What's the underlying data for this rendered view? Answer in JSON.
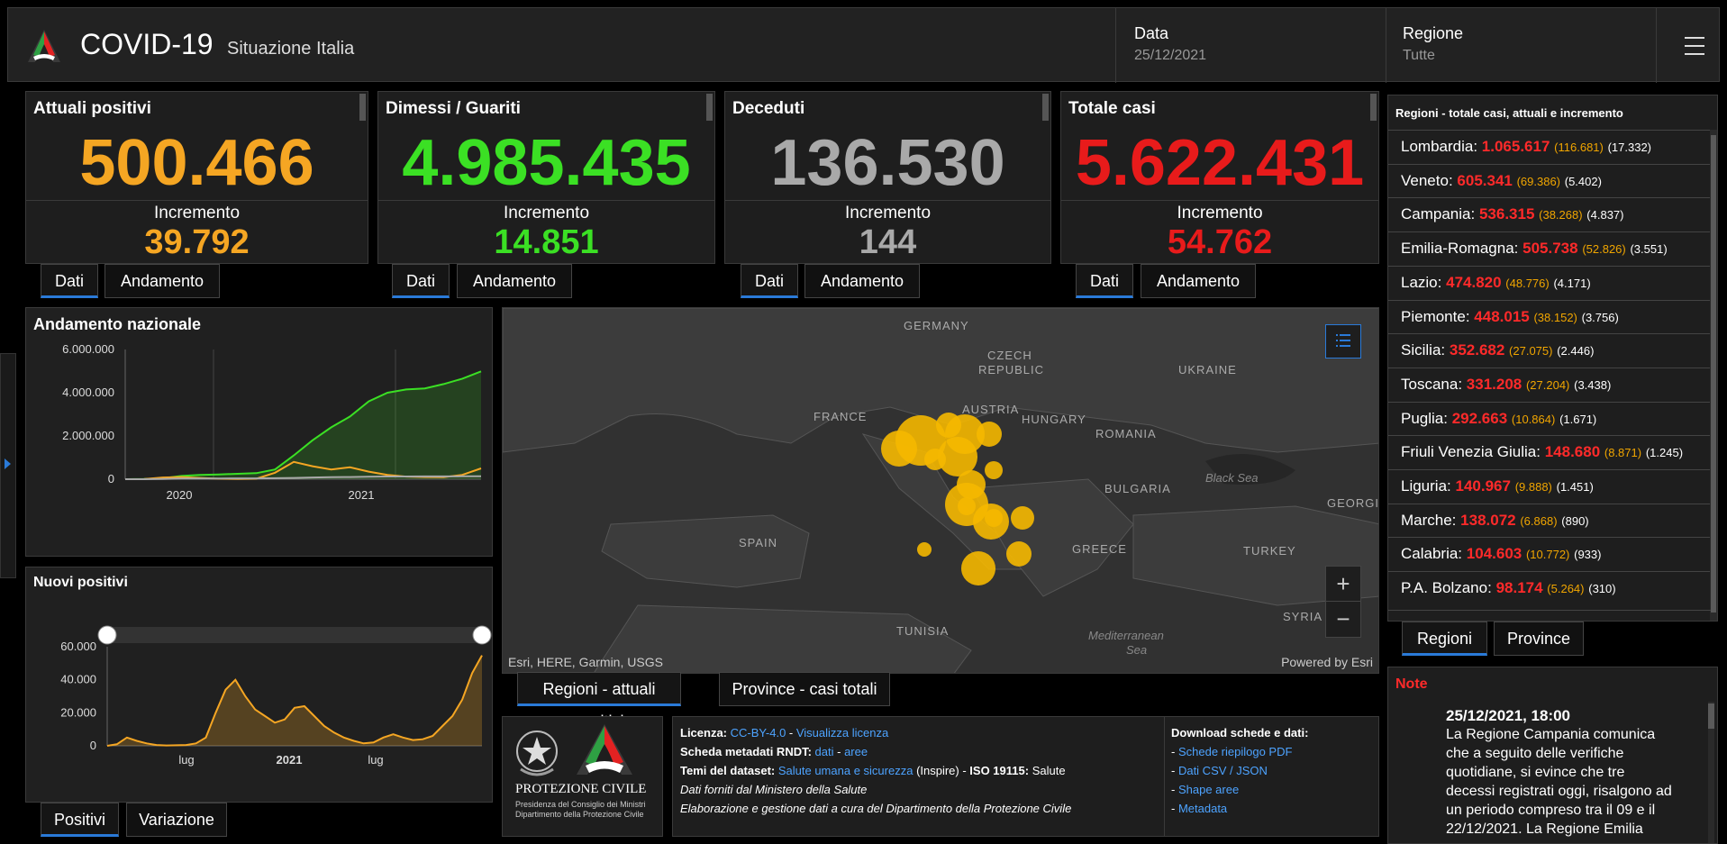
{
  "header": {
    "title": "COVID-19",
    "subtitle": "Situazione Italia",
    "date_label": "Data",
    "date_value": "25/12/2021",
    "region_label": "Regione",
    "region_value": "Tutte"
  },
  "cards": [
    {
      "title": "Attuali positivi",
      "value": "500.466",
      "inc_label": "Incremento",
      "inc_value": "39.792",
      "color": "#f5a623"
    },
    {
      "title": "Dimessi / Guariti",
      "value": "4.985.435",
      "inc_label": "Incremento",
      "inc_value": "14.851",
      "color": "#3be024"
    },
    {
      "title": "Deceduti",
      "value": "136.530",
      "inc_label": "Incremento",
      "inc_value": "144",
      "color": "#a9a9a9"
    },
    {
      "title": "Totale casi",
      "value": "5.622.431",
      "inc_label": "Incremento",
      "inc_value": "54.762",
      "color": "#e81b1b"
    }
  ],
  "card_tabs": {
    "dati": "Dati",
    "andamento": "Andamento"
  },
  "chart_tabs": {
    "positivi": "Positivi",
    "variazione": "Variazione"
  },
  "map_tabs": {
    "attuali": "Regioni - attuali positivi",
    "province": "Province - casi totali"
  },
  "region_tabs": {
    "regioni": "Regioni",
    "province": "Province"
  },
  "map": {
    "countries": [
      "GERMANY",
      "CZECH",
      "REPUBLIC",
      "UKRAINE",
      "FRANCE",
      "AUSTRIA",
      "HUNGARY",
      "ROMANIA",
      "BULGARIA",
      "SPAIN",
      "GREECE",
      "TURKEY",
      "TUNISIA",
      "SYRIA",
      "GEORGI"
    ],
    "seas": [
      "Black Sea",
      "Mediterranean",
      "Sea"
    ],
    "attribution": "Esri, HERE, Garmin, USGS",
    "powered": "Powered by Esri",
    "zoom_in": "+",
    "zoom_out": "−"
  },
  "regions_panel": {
    "title": "Regioni - totale casi, attuali e incremento",
    "rows": [
      {
        "name": "Lombardia:",
        "total": "1.065.617",
        "att": "(116.681)",
        "inc": "(17.332)"
      },
      {
        "name": "Veneto:",
        "total": "605.341",
        "att": "(69.386)",
        "inc": "(5.402)"
      },
      {
        "name": "Campania:",
        "total": "536.315",
        "att": "(38.268)",
        "inc": "(4.837)"
      },
      {
        "name": "Emilia-Romagna:",
        "total": "505.738",
        "att": "(52.826)",
        "inc": "(3.551)"
      },
      {
        "name": "Lazio:",
        "total": "474.820",
        "att": "(48.776)",
        "inc": "(4.171)"
      },
      {
        "name": "Piemonte:",
        "total": "448.015",
        "att": "(38.152)",
        "inc": "(3.756)"
      },
      {
        "name": "Sicilia:",
        "total": "352.682",
        "att": "(27.075)",
        "inc": "(2.446)"
      },
      {
        "name": "Toscana:",
        "total": "331.208",
        "att": "(27.204)",
        "inc": "(3.438)"
      },
      {
        "name": "Puglia:",
        "total": "292.663",
        "att": "(10.864)",
        "inc": "(1.671)"
      },
      {
        "name": "Friuli Venezia Giulia:",
        "total": "148.680",
        "att": "(8.871)",
        "inc": "(1.245)"
      },
      {
        "name": "Liguria:",
        "total": "140.967",
        "att": "(9.888)",
        "inc": "(1.451)"
      },
      {
        "name": "Marche:",
        "total": "138.072",
        "att": "(6.868)",
        "inc": "(890)"
      },
      {
        "name": "Calabria:",
        "total": "104.603",
        "att": "(10.772)",
        "inc": "(933)"
      },
      {
        "name": "P.A. Bolzano:",
        "total": "98.174",
        "att": "(5.264)",
        "inc": "(310)"
      }
    ]
  },
  "notes": {
    "title": "Note",
    "date": "25/12/2021, 18:00",
    "lines": [
      "La Regione Campania comunica",
      "che a seguito delle verifiche",
      "quotidiane, si evince che tre",
      "decessi registrati oggi, risalgono ad",
      "un periodo compreso tra il 09 e il",
      "22/12/2021. La Regione Emilia"
    ]
  },
  "license": {
    "licenza_label": "Licenza:",
    "licenza_val": "CC-BY-4.0",
    "licenza_sep": " - ",
    "licenza_link": "Visualizza licenza",
    "scheda_label": "Scheda metadati RNDT:",
    "scheda_dati": "dati",
    "scheda_sep": " - ",
    "scheda_aree": "aree",
    "temi_label": "Temi del dataset:",
    "temi_val": "Salute umana e sicurezza",
    "temi_inspire": " (Inspire) - ",
    "iso_label": "ISO 19115:",
    "iso_val": " Salute",
    "line4": "Dati forniti dal Ministero della Salute",
    "line5": "Elaborazione e gestione dati a cura del Dipartimento della Protezione Civile",
    "download_title": "Download schede e dati:",
    "downloads": [
      "Schede riepilogo PDF",
      "Dati CSV / JSON",
      "Shape aree",
      "Metadata"
    ]
  },
  "protezione": {
    "name": "PROTEZIONE CIVILE",
    "sub1": "Presidenza del Consiglio dei Ministri",
    "sub2": "Dipartimento della Protezione Civile"
  },
  "chart_data": [
    {
      "type": "line",
      "title": "Andamento nazionale",
      "x_ticks": [
        "2020",
        "2021"
      ],
      "y_ticks": [
        "6.000.000",
        "4.000.000",
        "2.000.000",
        "0"
      ],
      "ylim": [
        0,
        6000000
      ],
      "series": [
        {
          "color": "#3be024",
          "values": [
            0,
            10000,
            40000,
            150000,
            200000,
            220000,
            250000,
            280000,
            450000,
            1100000,
            1800000,
            2400000,
            2900000,
            3600000,
            4000000,
            4150000,
            4200000,
            4400000,
            4650000,
            4985435
          ]
        },
        {
          "color": "#f5a623",
          "values": [
            0,
            5000,
            80000,
            100000,
            60000,
            20000,
            10000,
            20000,
            300000,
            800000,
            600000,
            450000,
            550000,
            350000,
            200000,
            120000,
            100000,
            90000,
            200000,
            500466
          ]
        },
        {
          "color": "#a9a9a9",
          "values": [
            0,
            0,
            10000,
            30000,
            35000,
            35000,
            36000,
            38000,
            45000,
            60000,
            80000,
            90000,
            100000,
            115000,
            125000,
            127000,
            128000,
            130000,
            133000,
            136530
          ]
        }
      ]
    },
    {
      "type": "area",
      "title": "Nuovi positivi",
      "x_ticks": [
        "lug",
        "2021",
        "lug"
      ],
      "y_ticks": [
        "60.000",
        "40.000",
        "20.000",
        "0"
      ],
      "ylim": [
        0,
        60000
      ],
      "series": [
        {
          "color": "#f5a623",
          "values": [
            0,
            1000,
            5000,
            3000,
            1500,
            500,
            200,
            300,
            500,
            1500,
            5000,
            20000,
            34000,
            40000,
            30000,
            22000,
            18000,
            14000,
            16000,
            23000,
            24000,
            18000,
            12000,
            8000,
            5000,
            3000,
            1500,
            2000,
            5000,
            7000,
            5000,
            3500,
            4000,
            6000,
            12000,
            18000,
            28000,
            44000,
            54762
          ]
        }
      ]
    }
  ]
}
